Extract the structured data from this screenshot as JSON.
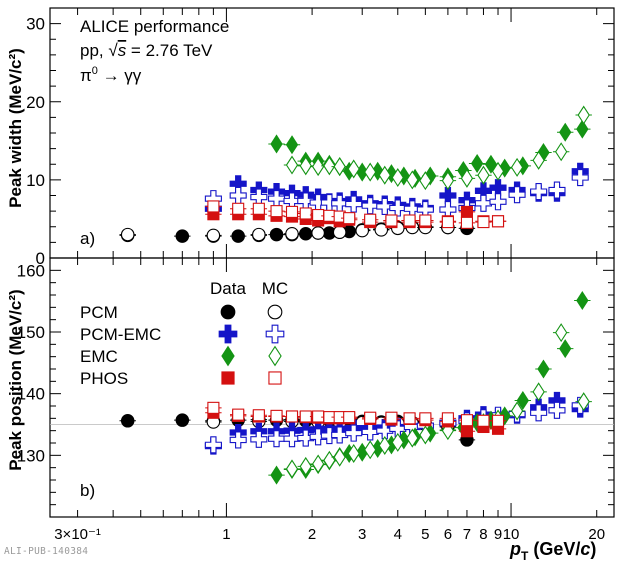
{
  "header": {
    "experiment": "ALICE performance",
    "system_prefix": "pp, ",
    "energy_suffix": "s",
    "energy_value": " = 2.76 TeV",
    "decay_pi": "π",
    "decay_rest": " → γγ"
  },
  "watermark": "ALI-PUB-140384",
  "colors": {
    "PCM": "#000000",
    "PCM-EMC": "#1515c8",
    "EMC": "#149414",
    "PHOS": "#d41010"
  },
  "legend": {
    "col_data": "Data",
    "col_mc": "MC",
    "entries": [
      {
        "label": "PCM",
        "series": "PCM",
        "data_marker": "filled-circle",
        "mc_marker": "open-circle"
      },
      {
        "label": "PCM-EMC",
        "series": "PCM-EMC",
        "data_marker": "filled-cross",
        "mc_marker": "open-cross"
      },
      {
        "label": "EMC",
        "series": "EMC",
        "data_marker": "filled-diamond",
        "mc_marker": "open-diamond"
      },
      {
        "label": "PHOS",
        "series": "PHOS",
        "data_marker": "filled-square",
        "mc_marker": "open-square"
      }
    ]
  },
  "chart_data": [
    {
      "type": "scatter",
      "panel_label": "a)",
      "ylabel": "Peak width (MeV/c²)",
      "xscale": "log",
      "xlim": [
        0.24,
        23
      ],
      "ylim": [
        0,
        32
      ],
      "yticks": [
        0,
        10,
        20,
        30
      ],
      "grid": false,
      "series": [
        {
          "name": "PCM",
          "kind": "data",
          "marker": "circle",
          "filled": true,
          "x": [
            0.45,
            0.7,
            0.9,
            1.1,
            1.3,
            1.5,
            1.7,
            1.9,
            2.1,
            2.3,
            2.5,
            2.7,
            3.0,
            3.5,
            4.0,
            4.5,
            5.0,
            6.0,
            7.0
          ],
          "y": [
            2.9,
            2.8,
            2.8,
            2.8,
            2.9,
            3.0,
            3.0,
            3.1,
            3.2,
            3.2,
            3.3,
            3.4,
            3.6,
            3.7,
            3.9,
            4.0,
            4.0,
            3.9,
            3.8
          ]
        },
        {
          "name": "PCM",
          "kind": "mc",
          "marker": "circle",
          "filled": false,
          "x": [
            0.45,
            0.9,
            1.3,
            1.7,
            2.1,
            2.5,
            3.0,
            3.5,
            4.0,
            4.5,
            5.0,
            6.0
          ],
          "y": [
            3.0,
            2.9,
            3.0,
            3.1,
            3.2,
            3.3,
            3.5,
            3.6,
            3.8,
            3.9,
            3.9,
            3.9
          ]
        },
        {
          "name": "PCM-EMC",
          "kind": "data",
          "marker": "cross",
          "filled": true,
          "x": [
            0.9,
            1.1,
            1.3,
            1.5,
            1.7,
            1.9,
            2.1,
            2.3,
            2.5,
            2.8,
            3.2,
            3.6,
            4.0,
            4.5,
            5.0,
            6.0,
            7.0,
            8.0,
            9.0,
            10.5,
            12.5,
            14.5,
            17.5
          ],
          "y": [
            6.3,
            9.5,
            8.7,
            8.5,
            8.3,
            8.1,
            7.8,
            7.2,
            7.3,
            7.5,
            7.0,
            6.9,
            6.8,
            6.6,
            6.4,
            8.0,
            7.4,
            8.6,
            9.0,
            8.7,
            8.3,
            8.3,
            11.1
          ]
        },
        {
          "name": "PCM-EMC",
          "kind": "mc",
          "marker": "cross",
          "filled": false,
          "x": [
            0.9,
            1.1,
            1.3,
            1.5,
            1.7,
            1.9,
            2.1,
            2.3,
            2.5,
            2.8,
            3.2,
            3.6,
            4.0,
            4.5,
            5.0,
            6.0,
            7.0,
            8.0,
            9.0,
            10.5,
            12.5,
            14.5,
            17.5
          ],
          "y": [
            7.6,
            8.0,
            7.8,
            7.6,
            7.3,
            7.3,
            7.1,
            7.1,
            7.0,
            6.9,
            6.7,
            6.6,
            6.4,
            6.3,
            6.2,
            6.2,
            6.4,
            7.0,
            7.2,
            8.1,
            8.5,
            8.7,
            10.3
          ]
        },
        {
          "name": "EMC",
          "kind": "data",
          "marker": "diamond",
          "filled": true,
          "x": [
            1.5,
            1.7,
            1.9,
            2.1,
            2.3,
            2.5,
            2.7,
            3.0,
            3.4,
            3.8,
            4.2,
            4.6,
            5.2,
            6.0,
            6.8,
            7.6,
            8.5,
            9.5,
            11.0,
            13.0,
            15.5,
            17.8
          ],
          "y": [
            14.6,
            14.5,
            12.4,
            12.4,
            12.0,
            11.7,
            11.1,
            11.0,
            11.1,
            10.8,
            10.5,
            10.2,
            10.5,
            10.4,
            11.2,
            12.1,
            12.0,
            11.5,
            11.8,
            13.5,
            16.1,
            16.5
          ]
        },
        {
          "name": "EMC",
          "kind": "mc",
          "marker": "diamond",
          "filled": false,
          "x": [
            1.7,
            1.9,
            2.1,
            2.3,
            2.5,
            2.8,
            3.2,
            3.6,
            4.0,
            4.5,
            5.0,
            6.0,
            7.0,
            8.0,
            9.0,
            10.5,
            12.5,
            15.0,
            18.0
          ],
          "y": [
            11.9,
            11.8,
            11.7,
            11.8,
            11.7,
            11.4,
            11.0,
            10.6,
            10.3,
            10.0,
            9.9,
            9.9,
            10.2,
            10.6,
            11.1,
            11.6,
            12.5,
            13.6,
            18.3
          ]
        },
        {
          "name": "PHOS",
          "kind": "data",
          "marker": "square",
          "filled": true,
          "x": [
            0.9,
            1.1,
            1.3,
            1.5,
            1.7,
            1.9,
            2.1,
            2.3,
            2.5,
            2.7,
            3.2,
            3.8,
            4.4,
            5.0,
            6.0,
            7.0,
            8.0,
            9.0
          ],
          "y": [
            5.6,
            5.6,
            5.6,
            5.4,
            5.3,
            5.0,
            4.8,
            5.1,
            4.7,
            4.9,
            4.6,
            4.6,
            4.6,
            4.6,
            4.7,
            5.9,
            4.7,
            4.7
          ]
        },
        {
          "name": "PHOS",
          "kind": "mc",
          "marker": "square",
          "filled": false,
          "x": [
            0.9,
            1.1,
            1.3,
            1.5,
            1.7,
            1.9,
            2.1,
            2.3,
            2.5,
            2.7,
            3.2,
            3.8,
            4.4,
            5.0,
            6.0,
            7.0,
            8.0,
            9.0
          ],
          "y": [
            6.6,
            6.3,
            6.3,
            6.0,
            5.9,
            5.7,
            5.5,
            5.4,
            5.3,
            5.1,
            4.9,
            4.8,
            4.8,
            4.8,
            4.6,
            4.5,
            4.6,
            4.7
          ]
        }
      ]
    },
    {
      "type": "scatter",
      "panel_label": "b)",
      "ylabel": "Peak position (MeV/c²)",
      "xlabel": "pT (GeV/c)",
      "xscale": "log",
      "xlim": [
        0.24,
        23
      ],
      "ylim": [
        120,
        162
      ],
      "yticks": [
        130,
        140,
        150,
        160
      ],
      "reference_line": 135,
      "grid": false,
      "xticks": [
        {
          "v": 0.3,
          "label": "3×10⁻¹"
        },
        {
          "v": 1,
          "label": "1"
        },
        {
          "v": 2,
          "label": "2"
        },
        {
          "v": 3,
          "label": "3"
        },
        {
          "v": 4,
          "label": "4"
        },
        {
          "v": 5,
          "label": "5"
        },
        {
          "v": 6,
          "label": "6"
        },
        {
          "v": 7,
          "label": "7"
        },
        {
          "v": 8,
          "label": "8"
        },
        {
          "v": 9,
          "label": "9"
        },
        {
          "v": 10,
          "label": "10"
        },
        {
          "v": 20,
          "label": "20"
        }
      ],
      "series": [
        {
          "name": "PCM",
          "kind": "data",
          "marker": "circle",
          "filled": true,
          "x": [
            0.45,
            0.7,
            0.9,
            1.1,
            1.3,
            1.5,
            1.7,
            1.9,
            2.1,
            2.3,
            2.5,
            2.7,
            3.0,
            3.5,
            4.0,
            4.5,
            5.0,
            6.0,
            7.0
          ],
          "y": [
            135.6,
            135.7,
            135.6,
            135.7,
            135.8,
            135.7,
            135.8,
            135.6,
            135.7,
            135.7,
            135.5,
            135.6,
            135.5,
            135.4,
            135.5,
            135.3,
            135.1,
            134.6,
            132.5
          ]
        },
        {
          "name": "PCM",
          "kind": "mc",
          "marker": "circle",
          "filled": false,
          "x": [
            0.9,
            1.3,
            1.7,
            2.1,
            2.5,
            3.0,
            3.5,
            4.0,
            4.5,
            5.0,
            6.0
          ],
          "y": [
            135.4,
            135.5,
            135.5,
            135.4,
            135.3,
            135.3,
            135.2,
            135.2,
            135.1,
            135.0,
            134.8
          ]
        },
        {
          "name": "PCM-EMC",
          "kind": "data",
          "marker": "cross",
          "filled": true,
          "x": [
            0.9,
            1.1,
            1.3,
            1.5,
            1.7,
            1.9,
            2.1,
            2.3,
            2.5,
            2.8,
            3.2,
            3.6,
            4.0,
            4.5,
            5.0,
            6.0,
            7.0,
            8.0,
            9.0,
            10.5,
            12.5,
            14.5,
            17.5
          ],
          "y": [
            131.5,
            133.7,
            133.9,
            133.9,
            134.0,
            134.1,
            134.2,
            134.3,
            134.3,
            134.4,
            134.4,
            134.5,
            134.6,
            134.7,
            134.8,
            135.3,
            136.0,
            136.6,
            136.3,
            136.5,
            137.8,
            138.9,
            137.5
          ]
        },
        {
          "name": "PCM-EMC",
          "kind": "mc",
          "marker": "cross",
          "filled": false,
          "x": [
            0.9,
            1.1,
            1.3,
            1.5,
            1.7,
            1.9,
            2.1,
            2.3,
            2.5,
            2.8,
            3.2,
            3.6,
            4.0,
            4.5,
            5.0,
            6.0,
            7.0,
            8.0,
            9.0,
            10.5,
            12.5,
            14.5,
            17.5
          ],
          "y": [
            131.7,
            132.5,
            132.6,
            132.7,
            132.7,
            132.8,
            133.0,
            133.2,
            133.3,
            133.6,
            133.8,
            134.0,
            134.3,
            134.6,
            134.8,
            135.2,
            135.6,
            136.1,
            136.5,
            136.7,
            136.9,
            137.3,
            138.1
          ]
        },
        {
          "name": "EMC",
          "kind": "data",
          "marker": "diamond",
          "filled": true,
          "x": [
            1.5,
            1.7,
            1.9,
            2.1,
            2.3,
            2.5,
            2.7,
            3.0,
            3.4,
            3.8,
            4.2,
            4.6,
            5.2,
            6.0,
            6.8,
            7.6,
            8.5,
            9.5,
            11.0,
            13.0,
            15.5,
            17.8
          ],
          "y": [
            126.8,
            127.7,
            127.7,
            128.5,
            129.1,
            129.8,
            130.3,
            130.5,
            131.1,
            131.7,
            132.5,
            133.0,
            133.6,
            134.1,
            134.5,
            135.3,
            135.7,
            136.4,
            138.9,
            144.0,
            147.3,
            155.1
          ]
        },
        {
          "name": "EMC",
          "kind": "mc",
          "marker": "diamond",
          "filled": false,
          "x": [
            1.7,
            1.9,
            2.1,
            2.3,
            2.5,
            2.8,
            3.2,
            3.6,
            4.0,
            4.5,
            5.0,
            6.0,
            7.0,
            8.0,
            9.0,
            10.5,
            12.5,
            15.0,
            18.0
          ],
          "y": [
            127.8,
            128.2,
            128.6,
            129.2,
            129.7,
            130.3,
            130.9,
            131.6,
            132.1,
            132.8,
            133.3,
            134.0,
            134.6,
            135.3,
            135.9,
            137.2,
            140.3,
            149.9,
            138.7
          ]
        },
        {
          "name": "PHOS",
          "kind": "data",
          "marker": "square",
          "filled": true,
          "x": [
            0.9,
            1.1,
            1.3,
            1.5,
            1.7,
            1.9,
            2.1,
            2.3,
            2.5,
            2.7,
            3.2,
            3.8,
            4.4,
            5.0,
            6.0,
            7.0,
            8.0,
            9.0
          ],
          "y": [
            136.9,
            136.4,
            136.3,
            136.3,
            136.3,
            136.2,
            136.1,
            136.0,
            136.0,
            136.0,
            135.9,
            135.8,
            135.9,
            135.7,
            135.5,
            133.9,
            134.6,
            134.3
          ]
        },
        {
          "name": "PHOS",
          "kind": "mc",
          "marker": "square",
          "filled": false,
          "x": [
            0.9,
            1.1,
            1.3,
            1.5,
            1.7,
            1.9,
            2.1,
            2.3,
            2.5,
            2.7,
            3.2,
            3.8,
            4.4,
            5.0,
            6.0,
            7.0,
            8.0,
            9.0
          ],
          "y": [
            137.7,
            136.6,
            136.5,
            136.4,
            136.3,
            136.3,
            136.3,
            136.2,
            136.2,
            136.2,
            136.1,
            136.1,
            136.0,
            136.0,
            136.0,
            135.7,
            135.6,
            135.6
          ]
        }
      ]
    }
  ]
}
